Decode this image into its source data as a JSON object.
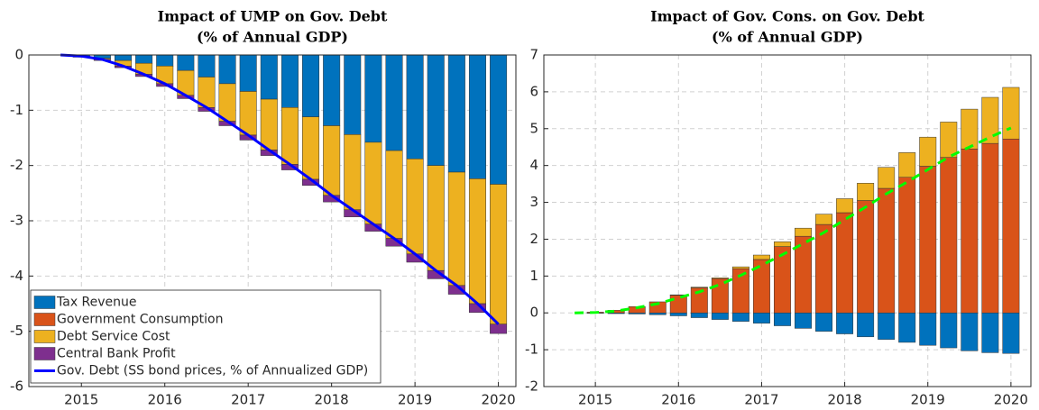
{
  "chart_data": [
    {
      "type": "bar",
      "title": "Impact of UMP on Gov. Debt",
      "subtitle": "(% of Annual GDP)",
      "x": [
        2014.75,
        2015,
        2015.25,
        2015.5,
        2015.75,
        2016,
        2016.25,
        2016.5,
        2016.75,
        2017,
        2017.25,
        2017.5,
        2017.75,
        2018,
        2018.25,
        2018.5,
        2018.75,
        2019,
        2019.25,
        2019.5,
        2019.75,
        2020
      ],
      "xlim": [
        2014.37,
        2020.21
      ],
      "xticks": [
        2015,
        2016,
        2017,
        2018,
        2019,
        2020
      ],
      "ylim": [
        -6,
        0
      ],
      "yticks": [
        -6,
        -5,
        -4,
        -3,
        -2,
        -1,
        0
      ],
      "grid": true,
      "legend": "lower left",
      "series": [
        {
          "name": "Tax Revenue",
          "color": "#0072bd",
          "values": [
            null,
            -0.02,
            -0.06,
            -0.1,
            -0.15,
            -0.2,
            -0.28,
            -0.4,
            -0.52,
            -0.66,
            -0.8,
            -0.95,
            -1.12,
            -1.28,
            -1.44,
            -1.58,
            -1.73,
            -1.88,
            -2.0,
            -2.12,
            -2.24,
            -2.34
          ]
        },
        {
          "name": "Government Consumption",
          "color": "#d95319",
          "values": [
            null,
            0,
            0,
            0,
            0,
            0,
            0,
            0,
            0,
            0,
            0,
            0,
            0,
            0,
            0,
            0,
            0,
            0,
            0,
            0,
            0,
            0
          ]
        },
        {
          "name": "Debt Service Cost",
          "color": "#edb120",
          "values": [
            null,
            -0.01,
            -0.02,
            -0.1,
            -0.2,
            -0.32,
            -0.45,
            -0.55,
            -0.68,
            -0.79,
            -0.92,
            -1.03,
            -1.13,
            -1.26,
            -1.36,
            -1.48,
            -1.59,
            -1.72,
            -1.9,
            -2.05,
            -2.26,
            -2.53
          ]
        },
        {
          "name": "Central Bank Profit",
          "color": "#7e2f8e",
          "values": [
            null,
            -0.01,
            -0.02,
            -0.03,
            -0.04,
            -0.05,
            -0.06,
            -0.07,
            -0.08,
            -0.09,
            -0.1,
            -0.1,
            -0.11,
            -0.12,
            -0.13,
            -0.13,
            -0.14,
            -0.15,
            -0.15,
            -0.16,
            -0.16,
            -0.17
          ]
        },
        {
          "name": "Gov. Debt (SS bond prices, % of Annualized GDP)",
          "type": "line",
          "color": "#0000ff",
          "values": [
            0,
            -0.02,
            -0.08,
            -0.2,
            -0.35,
            -0.52,
            -0.73,
            -0.95,
            -1.2,
            -1.45,
            -1.72,
            -1.98,
            -2.25,
            -2.54,
            -2.8,
            -3.06,
            -3.32,
            -3.6,
            -3.9,
            -4.17,
            -4.5,
            -4.87
          ]
        }
      ]
    },
    {
      "type": "bar",
      "title": "Impact of Gov. Cons. on Gov. Debt",
      "subtitle": "(% of Annual GDP)",
      "x": [
        2014.75,
        2015,
        2015.25,
        2015.5,
        2015.75,
        2016,
        2016.25,
        2016.5,
        2016.75,
        2017,
        2017.25,
        2017.5,
        2017.75,
        2018,
        2018.25,
        2018.5,
        2018.75,
        2019,
        2019.25,
        2019.5,
        2019.75,
        2020
      ],
      "xlim": [
        2014.38,
        2020.24
      ],
      "xticks": [
        2015,
        2016,
        2017,
        2018,
        2019,
        2020
      ],
      "ylim": [
        -2,
        7
      ],
      "yticks": [
        -2,
        -1,
        0,
        1,
        2,
        3,
        4,
        5,
        6,
        7
      ],
      "grid": true,
      "series": [
        {
          "color": "#0072bd",
          "values": [
            null,
            -0.01,
            -0.02,
            -0.03,
            -0.05,
            -0.08,
            -0.13,
            -0.18,
            -0.23,
            -0.28,
            -0.35,
            -0.42,
            -0.5,
            -0.57,
            -0.65,
            -0.72,
            -0.8,
            -0.88,
            -0.95,
            -1.03,
            -1.08,
            -1.1
          ]
        },
        {
          "color": "#d95319",
          "values": [
            null,
            0.02,
            0.07,
            0.17,
            0.3,
            0.48,
            0.68,
            0.93,
            1.2,
            1.45,
            1.8,
            2.08,
            2.4,
            2.72,
            3.05,
            3.38,
            3.68,
            3.98,
            4.22,
            4.45,
            4.6,
            4.72
          ]
        },
        {
          "color": "#edb120",
          "values": [
            null,
            0,
            0,
            0,
            0,
            0.01,
            0.02,
            0.02,
            0.05,
            0.12,
            0.13,
            0.22,
            0.28,
            0.38,
            0.47,
            0.57,
            0.67,
            0.79,
            0.96,
            1.08,
            1.25,
            1.4
          ]
        },
        {
          "color": "#7e2f8e",
          "values": [
            null,
            0,
            0,
            0,
            0,
            0,
            0,
            0,
            0,
            0,
            0,
            0,
            0,
            0,
            0,
            0,
            0,
            0,
            0,
            0,
            0,
            0
          ]
        },
        {
          "type": "line",
          "color": "#00ff00",
          "dashed": true,
          "values": [
            0,
            0.01,
            0.05,
            0.14,
            0.25,
            0.41,
            0.57,
            0.77,
            1.02,
            1.29,
            1.58,
            1.88,
            2.18,
            2.53,
            2.87,
            3.23,
            3.55,
            3.89,
            4.23,
            4.5,
            4.77,
            5.02
          ]
        }
      ]
    }
  ]
}
